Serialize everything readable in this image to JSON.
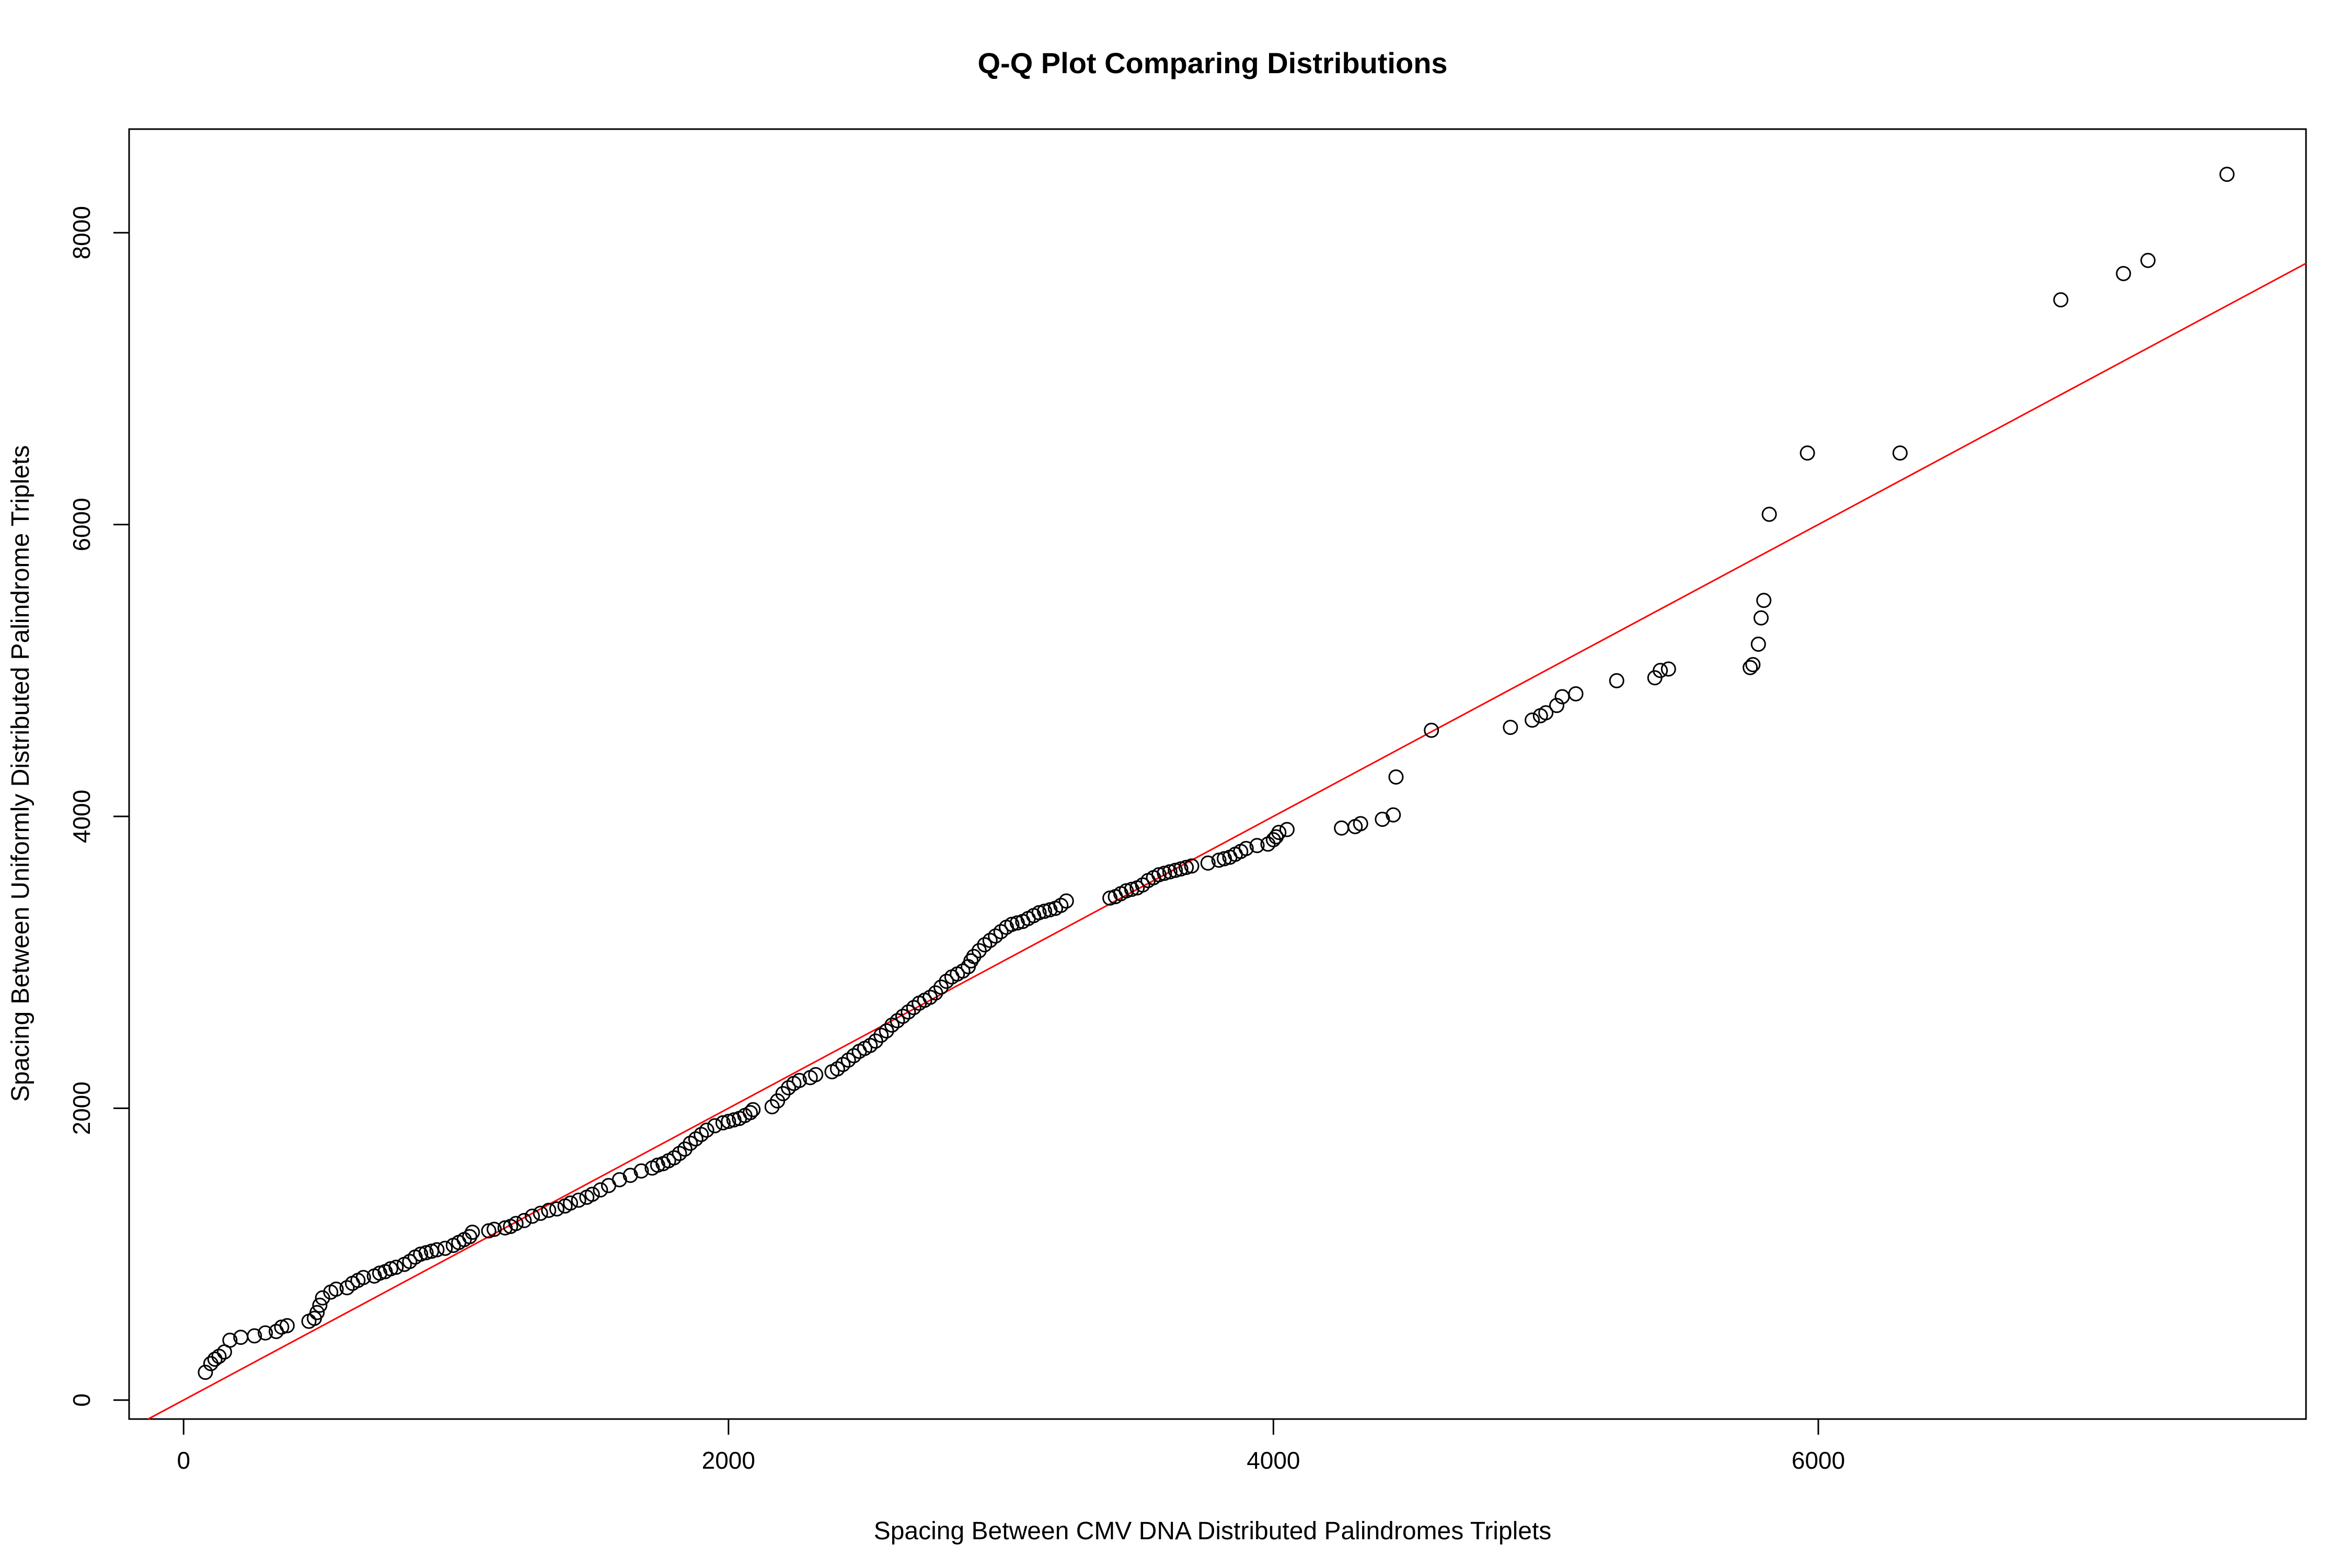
{
  "chart_data": {
    "type": "scatter",
    "title": "Q-Q Plot Comparing Distributions",
    "xlabel": "Spacing Between CMV DNA Distributed Palindromes Triplets",
    "ylabel": "Spacing Between Uniformly Distributed Palindrome Triplets",
    "xlim": [
      -200,
      7790
    ],
    "ylim": [
      -130,
      8710
    ],
    "x_ticks": [
      0,
      2000,
      4000,
      6000
    ],
    "y_ticks": [
      0,
      2000,
      4000,
      6000,
      8000
    ],
    "x_tick_labels": [
      "0",
      "2000",
      "4000",
      "6000"
    ],
    "y_tick_labels": [
      "0",
      "2000",
      "4000",
      "6000",
      "8000"
    ],
    "grid": false,
    "legend": "none",
    "point_color": "#000000",
    "reference_line": {
      "color": "#ff0000",
      "slope": 1.0,
      "intercept": 0
    },
    "points": [
      [
        80,
        190
      ],
      [
        100,
        250
      ],
      [
        115,
        280
      ],
      [
        130,
        300
      ],
      [
        150,
        330
      ],
      [
        170,
        410
      ],
      [
        210,
        430
      ],
      [
        260,
        440
      ],
      [
        300,
        460
      ],
      [
        340,
        470
      ],
      [
        360,
        500
      ],
      [
        380,
        510
      ],
      [
        460,
        540
      ],
      [
        480,
        560
      ],
      [
        490,
        600
      ],
      [
        500,
        650
      ],
      [
        510,
        700
      ],
      [
        540,
        740
      ],
      [
        560,
        760
      ],
      [
        600,
        770
      ],
      [
        620,
        800
      ],
      [
        640,
        820
      ],
      [
        660,
        840
      ],
      [
        700,
        850
      ],
      [
        720,
        870
      ],
      [
        740,
        880
      ],
      [
        760,
        900
      ],
      [
        780,
        910
      ],
      [
        810,
        930
      ],
      [
        830,
        950
      ],
      [
        850,
        980
      ],
      [
        870,
        1000
      ],
      [
        890,
        1010
      ],
      [
        910,
        1020
      ],
      [
        930,
        1030
      ],
      [
        960,
        1040
      ],
      [
        990,
        1060
      ],
      [
        1010,
        1080
      ],
      [
        1030,
        1100
      ],
      [
        1050,
        1120
      ],
      [
        1060,
        1150
      ],
      [
        1120,
        1160
      ],
      [
        1140,
        1170
      ],
      [
        1180,
        1180
      ],
      [
        1200,
        1190
      ],
      [
        1220,
        1210
      ],
      [
        1250,
        1230
      ],
      [
        1280,
        1260
      ],
      [
        1310,
        1280
      ],
      [
        1340,
        1300
      ],
      [
        1370,
        1310
      ],
      [
        1400,
        1330
      ],
      [
        1420,
        1350
      ],
      [
        1450,
        1370
      ],
      [
        1480,
        1390
      ],
      [
        1500,
        1410
      ],
      [
        1530,
        1440
      ],
      [
        1560,
        1470
      ],
      [
        1600,
        1510
      ],
      [
        1640,
        1540
      ],
      [
        1680,
        1570
      ],
      [
        1720,
        1590
      ],
      [
        1740,
        1610
      ],
      [
        1760,
        1620
      ],
      [
        1780,
        1640
      ],
      [
        1800,
        1660
      ],
      [
        1820,
        1690
      ],
      [
        1840,
        1720
      ],
      [
        1860,
        1760
      ],
      [
        1880,
        1790
      ],
      [
        1900,
        1820
      ],
      [
        1920,
        1850
      ],
      [
        1950,
        1880
      ],
      [
        1980,
        1900
      ],
      [
        2000,
        1910
      ],
      [
        2020,
        1920
      ],
      [
        2040,
        1930
      ],
      [
        2060,
        1950
      ],
      [
        2080,
        1970
      ],
      [
        2090,
        1990
      ],
      [
        2160,
        2010
      ],
      [
        2180,
        2050
      ],
      [
        2200,
        2100
      ],
      [
        2220,
        2140
      ],
      [
        2240,
        2170
      ],
      [
        2260,
        2190
      ],
      [
        2300,
        2210
      ],
      [
        2320,
        2230
      ],
      [
        2380,
        2250
      ],
      [
        2400,
        2270
      ],
      [
        2420,
        2300
      ],
      [
        2440,
        2330
      ],
      [
        2460,
        2360
      ],
      [
        2480,
        2390
      ],
      [
        2500,
        2410
      ],
      [
        2520,
        2430
      ],
      [
        2540,
        2460
      ],
      [
        2560,
        2500
      ],
      [
        2580,
        2530
      ],
      [
        2600,
        2570
      ],
      [
        2620,
        2600
      ],
      [
        2640,
        2630
      ],
      [
        2660,
        2660
      ],
      [
        2680,
        2690
      ],
      [
        2700,
        2720
      ],
      [
        2720,
        2740
      ],
      [
        2740,
        2760
      ],
      [
        2760,
        2790
      ],
      [
        2780,
        2830
      ],
      [
        2800,
        2870
      ],
      [
        2820,
        2900
      ],
      [
        2840,
        2920
      ],
      [
        2860,
        2940
      ],
      [
        2880,
        2970
      ],
      [
        2890,
        3010
      ],
      [
        2900,
        3040
      ],
      [
        2920,
        3080
      ],
      [
        2940,
        3120
      ],
      [
        2960,
        3150
      ],
      [
        2980,
        3180
      ],
      [
        3000,
        3210
      ],
      [
        3020,
        3240
      ],
      [
        3040,
        3260
      ],
      [
        3060,
        3270
      ],
      [
        3080,
        3280
      ],
      [
        3100,
        3300
      ],
      [
        3120,
        3320
      ],
      [
        3140,
        3340
      ],
      [
        3160,
        3350
      ],
      [
        3180,
        3360
      ],
      [
        3200,
        3370
      ],
      [
        3220,
        3390
      ],
      [
        3240,
        3420
      ],
      [
        3400,
        3440
      ],
      [
        3420,
        3450
      ],
      [
        3440,
        3470
      ],
      [
        3460,
        3490
      ],
      [
        3480,
        3500
      ],
      [
        3500,
        3510
      ],
      [
        3520,
        3530
      ],
      [
        3540,
        3560
      ],
      [
        3560,
        3580
      ],
      [
        3580,
        3600
      ],
      [
        3600,
        3610
      ],
      [
        3620,
        3620
      ],
      [
        3640,
        3630
      ],
      [
        3660,
        3640
      ],
      [
        3680,
        3650
      ],
      [
        3700,
        3660
      ],
      [
        3760,
        3680
      ],
      [
        3800,
        3700
      ],
      [
        3820,
        3710
      ],
      [
        3840,
        3720
      ],
      [
        3860,
        3740
      ],
      [
        3880,
        3760
      ],
      [
        3900,
        3780
      ],
      [
        3940,
        3800
      ],
      [
        3980,
        3810
      ],
      [
        4000,
        3840
      ],
      [
        4010,
        3860
      ],
      [
        4020,
        3890
      ],
      [
        4050,
        3910
      ],
      [
        4250,
        3920
      ],
      [
        4300,
        3930
      ],
      [
        4320,
        3950
      ],
      [
        4400,
        3980
      ],
      [
        4440,
        4010
      ],
      [
        4450,
        4270
      ],
      [
        4580,
        4590
      ],
      [
        4870,
        4610
      ],
      [
        4950,
        4660
      ],
      [
        4980,
        4690
      ],
      [
        5000,
        4710
      ],
      [
        5040,
        4760
      ],
      [
        5060,
        4820
      ],
      [
        5110,
        4840
      ],
      [
        5260,
        4930
      ],
      [
        5400,
        4950
      ],
      [
        5420,
        5000
      ],
      [
        5450,
        5010
      ],
      [
        5750,
        5020
      ],
      [
        5760,
        5040
      ],
      [
        5780,
        5180
      ],
      [
        5790,
        5360
      ],
      [
        5800,
        5480
      ],
      [
        5820,
        6070
      ],
      [
        5960,
        6490
      ],
      [
        6300,
        6490
      ],
      [
        6890,
        7540
      ],
      [
        7120,
        7720
      ],
      [
        7210,
        7810
      ],
      [
        7500,
        8400
      ]
    ]
  }
}
